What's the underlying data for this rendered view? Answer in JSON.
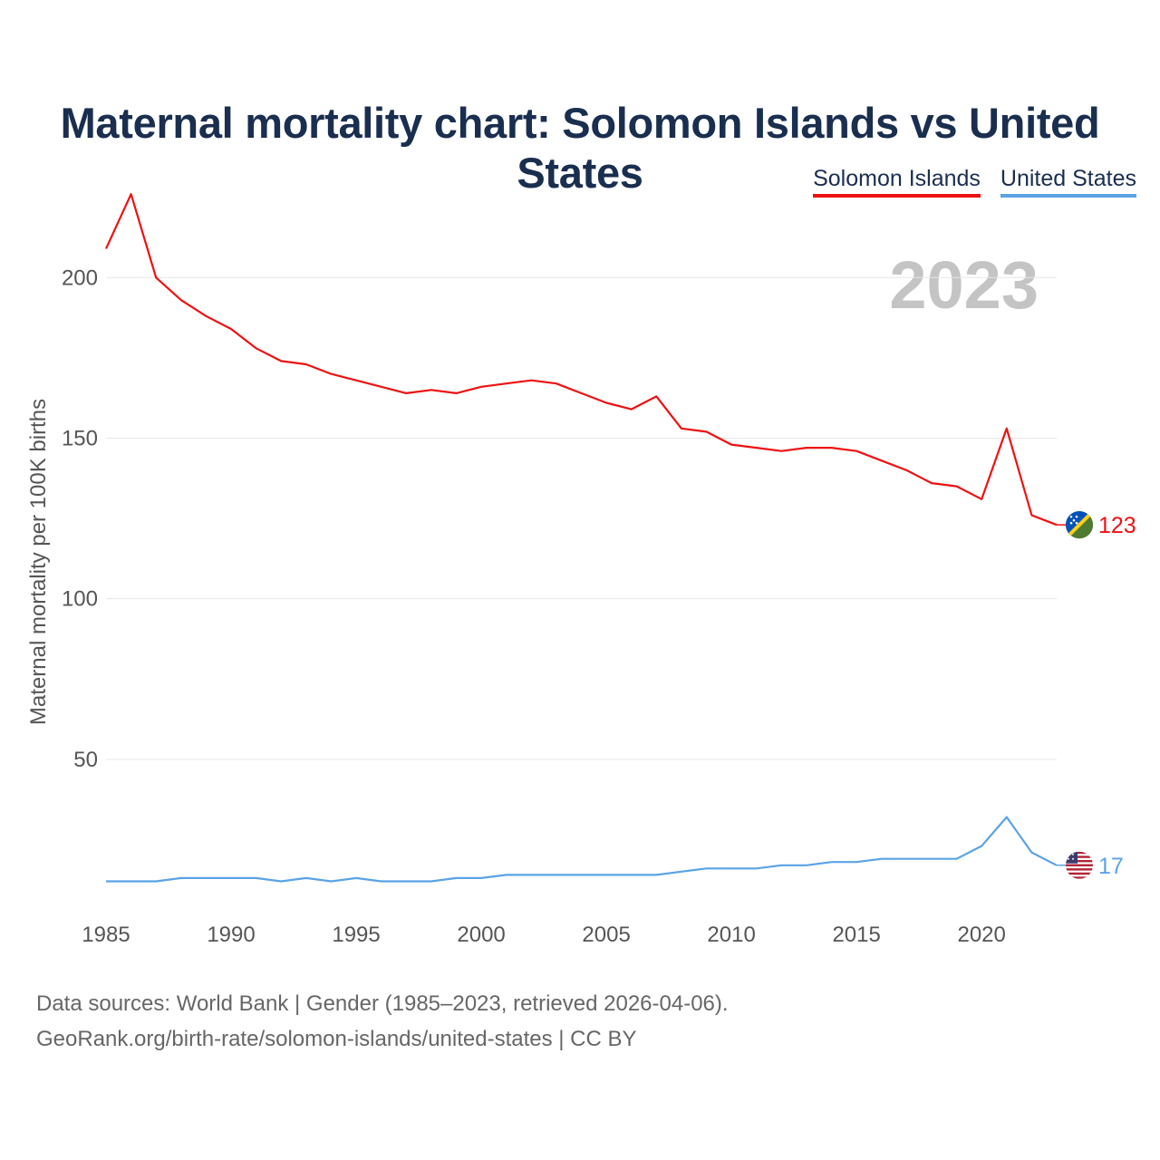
{
  "title": "Maternal mortality chart: Solomon Islands vs United States",
  "legend": [
    {
      "label": "Solomon Islands",
      "color": "#ee1111"
    },
    {
      "label": "United States",
      "color": "#5aa3e6"
    }
  ],
  "year_watermark": "2023",
  "footer": {
    "line1": "Data sources: World Bank | Gender (1985–2023, retrieved 2026-04-06).",
    "line2": "GeoRank.org/birth-rate/solomon-islands/united-states | CC BY"
  },
  "chart_data": {
    "type": "line",
    "title": "Maternal mortality chart: Solomon Islands vs United States",
    "xlabel": "",
    "ylabel": "Maternal mortality per 100K births",
    "xlim": [
      1985,
      2023
    ],
    "ylim": [
      0,
      230
    ],
    "y_ticks": [
      50,
      100,
      150,
      200
    ],
    "x_ticks": [
      1985,
      1990,
      1995,
      2000,
      2005,
      2010,
      2015,
      2020
    ],
    "grid": true,
    "x": [
      1985,
      1986,
      1987,
      1988,
      1989,
      1990,
      1991,
      1992,
      1993,
      1994,
      1995,
      1996,
      1997,
      1998,
      1999,
      2000,
      2001,
      2002,
      2003,
      2004,
      2005,
      2006,
      2007,
      2008,
      2009,
      2010,
      2011,
      2012,
      2013,
      2014,
      2015,
      2016,
      2017,
      2018,
      2019,
      2020,
      2021,
      2022,
      2023
    ],
    "series": [
      {
        "name": "Solomon Islands",
        "color": "#ee1111",
        "end_label": "123",
        "flag": "solomon-islands-flag",
        "values": [
          209,
          226,
          200,
          193,
          188,
          184,
          178,
          174,
          173,
          170,
          168,
          166,
          164,
          165,
          164,
          166,
          167,
          168,
          167,
          164,
          161,
          159,
          163,
          153,
          152,
          148,
          147,
          146,
          147,
          147,
          146,
          143,
          140,
          136,
          135,
          131,
          153,
          126,
          123
        ]
      },
      {
        "name": "United States",
        "color": "#5aa3e6",
        "end_label": "17",
        "flag": "united-states-flag",
        "values": [
          12,
          12,
          12,
          13,
          13,
          13,
          13,
          12,
          13,
          12,
          13,
          12,
          12,
          12,
          13,
          13,
          14,
          14,
          14,
          14,
          14,
          14,
          14,
          15,
          16,
          16,
          16,
          17,
          17,
          18,
          18,
          19,
          19,
          19,
          19,
          23,
          32,
          21,
          17
        ]
      }
    ]
  }
}
